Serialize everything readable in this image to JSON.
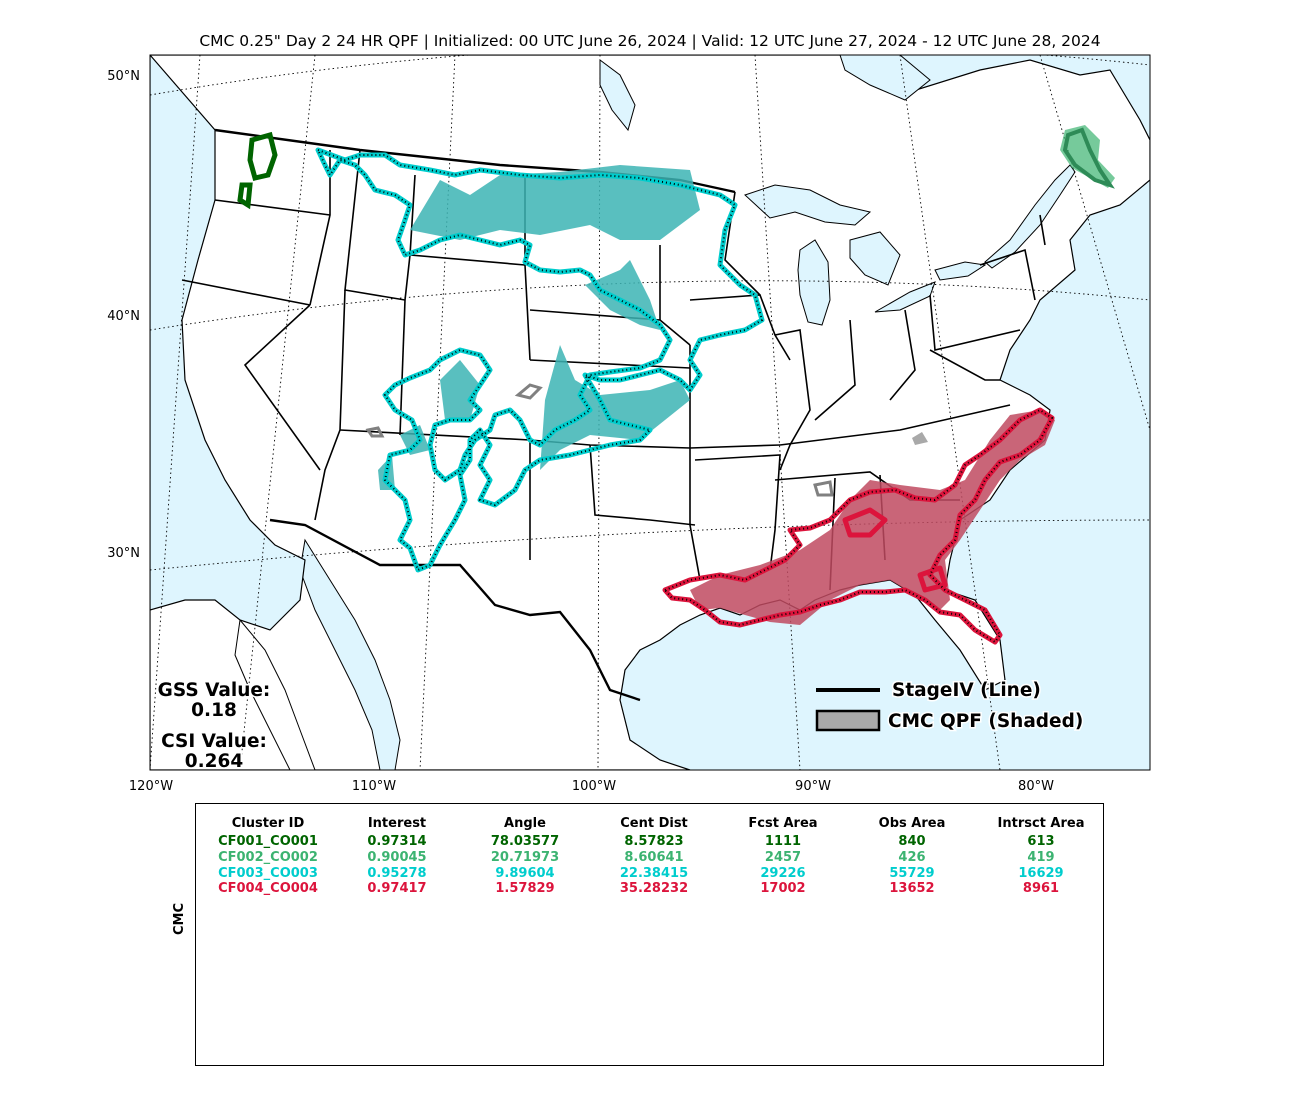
{
  "title": "CMC 0.25\" Day 2 24 HR QPF | Initialized: 00 UTC June 26, 2024 | Valid: 12 UTC June 27, 2024 - 12 UTC June 28, 2024",
  "map": {
    "lat_labels": [
      "50°N",
      "40°N",
      "30°N"
    ],
    "lon_labels": [
      "120°W",
      "110°W",
      "100°W",
      "90°W",
      "80°W"
    ],
    "colors": {
      "ocean": "#def5fe",
      "land": "#ffffff",
      "boundary": "#000000",
      "c1": "#006400",
      "c2": "#3cb371",
      "c3": "#00cdcd",
      "c4": "#dc143c",
      "small": "#808080"
    },
    "stats": {
      "gss_label": "GSS Value:",
      "gss_value": "0.18",
      "csi_label": "CSI Value:",
      "csi_value": "0.264"
    },
    "legend": {
      "line_label": "StageIV (Line)",
      "shaded_label": "CMC QPF (Shaded)"
    }
  },
  "table": {
    "side_label": "CMC",
    "headers": [
      "Cluster ID",
      "Interest",
      "Angle",
      "Cent Dist",
      "Fcst Area",
      "Obs Area",
      "Intrsct Area"
    ],
    "rows": [
      {
        "color": "#006400",
        "cells": [
          "CF001_CO001",
          "0.97314",
          "78.03577",
          "8.57823",
          "1111",
          "840",
          "613"
        ]
      },
      {
        "color": "#3cb371",
        "cells": [
          "CF002_CO002",
          "0.90045",
          "20.71973",
          "8.60641",
          "2457",
          "426",
          "419"
        ]
      },
      {
        "color": "#00cdcd",
        "cells": [
          "CF003_CO003",
          "0.95278",
          "9.89604",
          "22.38415",
          "29226",
          "55729",
          "16629"
        ]
      },
      {
        "color": "#dc143c",
        "cells": [
          "CF004_CO004",
          "0.97417",
          "1.57829",
          "35.28232",
          "17002",
          "13652",
          "8961"
        ]
      }
    ]
  }
}
